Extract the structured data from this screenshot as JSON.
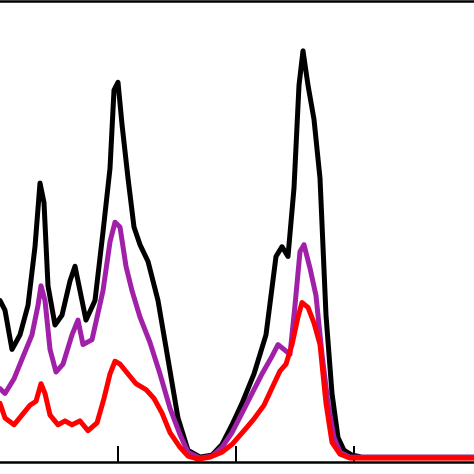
{
  "chart_data": {
    "type": "line",
    "title": "",
    "xlabel": "",
    "ylabel": "",
    "grid": false,
    "legend": "none",
    "xlim": [
      0,
      474
    ],
    "ylim": [
      0,
      470
    ],
    "x_ticks": [
      118,
      236,
      354
    ],
    "series": [
      {
        "color": "#000000",
        "points": [
          [
            0,
            165
          ],
          [
            5,
            155
          ],
          [
            12,
            115
          ],
          [
            20,
            130
          ],
          [
            28,
            160
          ],
          [
            35,
            220
          ],
          [
            40,
            285
          ],
          [
            44,
            265
          ],
          [
            48,
            180
          ],
          [
            55,
            140
          ],
          [
            62,
            150
          ],
          [
            70,
            185
          ],
          [
            75,
            200
          ],
          [
            80,
            175
          ],
          [
            86,
            145
          ],
          [
            95,
            165
          ],
          [
            103,
            235
          ],
          [
            110,
            300
          ],
          [
            114,
            380
          ],
          [
            118,
            388
          ],
          [
            122,
            345
          ],
          [
            128,
            290
          ],
          [
            134,
            240
          ],
          [
            140,
            222
          ],
          [
            148,
            205
          ],
          [
            158,
            165
          ],
          [
            168,
            105
          ],
          [
            178,
            45
          ],
          [
            188,
            12
          ],
          [
            200,
            5
          ],
          [
            212,
            7
          ],
          [
            222,
            18
          ],
          [
            232,
            38
          ],
          [
            242,
            60
          ],
          [
            254,
            90
          ],
          [
            266,
            130
          ],
          [
            276,
            210
          ],
          [
            282,
            220
          ],
          [
            288,
            210
          ],
          [
            294,
            280
          ],
          [
            299,
            385
          ],
          [
            303,
            420
          ],
          [
            308,
            385
          ],
          [
            314,
            350
          ],
          [
            320,
            290
          ],
          [
            326,
            150
          ],
          [
            332,
            70
          ],
          [
            338,
            25
          ],
          [
            344,
            12
          ],
          [
            352,
            7
          ],
          [
            362,
            5
          ],
          [
            474,
            5
          ]
        ]
      },
      {
        "color": "#a020a8",
        "points": [
          [
            0,
            75
          ],
          [
            5,
            70
          ],
          [
            14,
            85
          ],
          [
            24,
            110
          ],
          [
            32,
            130
          ],
          [
            38,
            160
          ],
          [
            41,
            180
          ],
          [
            45,
            165
          ],
          [
            50,
            115
          ],
          [
            56,
            92
          ],
          [
            63,
            100
          ],
          [
            72,
            130
          ],
          [
            78,
            145
          ],
          [
            83,
            120
          ],
          [
            92,
            125
          ],
          [
            103,
            175
          ],
          [
            110,
            225
          ],
          [
            115,
            245
          ],
          [
            120,
            240
          ],
          [
            126,
            200
          ],
          [
            132,
            175
          ],
          [
            140,
            148
          ],
          [
            150,
            122
          ],
          [
            160,
            90
          ],
          [
            170,
            55
          ],
          [
            180,
            28
          ],
          [
            188,
            10
          ],
          [
            200,
            4
          ],
          [
            212,
            6
          ],
          [
            222,
            15
          ],
          [
            232,
            30
          ],
          [
            242,
            50
          ],
          [
            252,
            70
          ],
          [
            262,
            90
          ],
          [
            272,
            108
          ],
          [
            278,
            120
          ],
          [
            284,
            115
          ],
          [
            290,
            110
          ],
          [
            295,
            160
          ],
          [
            300,
            215
          ],
          [
            304,
            222
          ],
          [
            310,
            198
          ],
          [
            316,
            170
          ],
          [
            322,
            110
          ],
          [
            328,
            60
          ],
          [
            334,
            25
          ],
          [
            340,
            10
          ],
          [
            350,
            5
          ],
          [
            474,
            5
          ]
        ]
      },
      {
        "color": "#ff0000",
        "points": [
          [
            0,
            60
          ],
          [
            5,
            45
          ],
          [
            14,
            38
          ],
          [
            22,
            48
          ],
          [
            30,
            58
          ],
          [
            36,
            62
          ],
          [
            41,
            80
          ],
          [
            45,
            70
          ],
          [
            50,
            48
          ],
          [
            58,
            38
          ],
          [
            65,
            42
          ],
          [
            72,
            38
          ],
          [
            80,
            42
          ],
          [
            88,
            32
          ],
          [
            97,
            40
          ],
          [
            104,
            65
          ],
          [
            110,
            90
          ],
          [
            115,
            103
          ],
          [
            120,
            100
          ],
          [
            128,
            90
          ],
          [
            136,
            80
          ],
          [
            146,
            74
          ],
          [
            154,
            65
          ],
          [
            162,
            50
          ],
          [
            170,
            30
          ],
          [
            180,
            15
          ],
          [
            188,
            6
          ],
          [
            198,
            3
          ],
          [
            210,
            5
          ],
          [
            222,
            10
          ],
          [
            232,
            18
          ],
          [
            244,
            32
          ],
          [
            254,
            44
          ],
          [
            264,
            58
          ],
          [
            274,
            80
          ],
          [
            280,
            93
          ],
          [
            286,
            100
          ],
          [
            292,
            120
          ],
          [
            298,
            148
          ],
          [
            302,
            163
          ],
          [
            308,
            158
          ],
          [
            314,
            142
          ],
          [
            320,
            120
          ],
          [
            326,
            60
          ],
          [
            332,
            20
          ],
          [
            340,
            8
          ],
          [
            350,
            4
          ],
          [
            474,
            4
          ]
        ]
      }
    ]
  }
}
